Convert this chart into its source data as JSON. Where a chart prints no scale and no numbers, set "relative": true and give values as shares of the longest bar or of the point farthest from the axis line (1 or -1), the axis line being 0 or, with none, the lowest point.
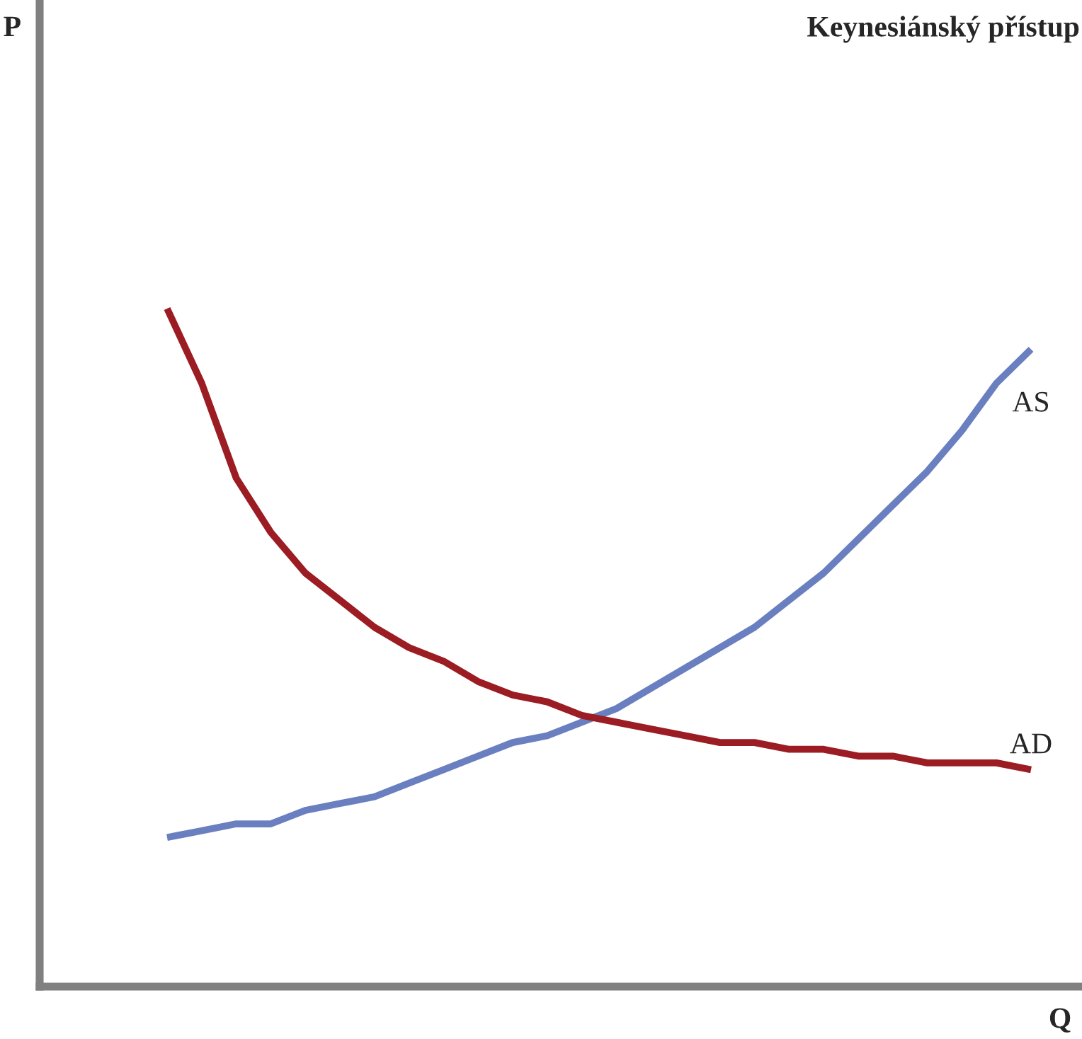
{
  "chart_data": {
    "type": "line",
    "title": "Keynesiánský přístup",
    "xlabel": "Q",
    "annotations": [
      "P"
    ],
    "relative": true,
    "legend": false,
    "marker": "none",
    "line_style": "solid",
    "categories": [
      null,
      null,
      null,
      null,
      null,
      null,
      null,
      null,
      null,
      null,
      null,
      null,
      null,
      null,
      null,
      null,
      null,
      null,
      null,
      null,
      null,
      null,
      null,
      null,
      null,
      null
    ],
    "series": [
      {
        "name": "AS",
        "color": "#6a7fc0",
        "values": [
          0.22,
          0.23,
          0.24,
          0.24,
          0.26,
          0.27,
          0.28,
          0.3,
          0.32,
          0.34,
          0.36,
          0.37,
          0.39,
          0.41,
          0.44,
          0.47,
          0.5,
          0.53,
          0.57,
          0.61,
          0.66,
          0.71,
          0.76,
          0.82,
          0.89,
          0.94
        ]
      },
      {
        "name": "AD",
        "color": "#9b1c22",
        "values": [
          1.0,
          0.89,
          0.75,
          0.67,
          0.61,
          0.57,
          0.53,
          0.5,
          0.48,
          0.45,
          0.43,
          0.42,
          0.4,
          0.39,
          0.38,
          0.37,
          0.36,
          0.36,
          0.35,
          0.35,
          0.34,
          0.34,
          0.33,
          0.33,
          0.33,
          0.32
        ]
      }
    ]
  }
}
